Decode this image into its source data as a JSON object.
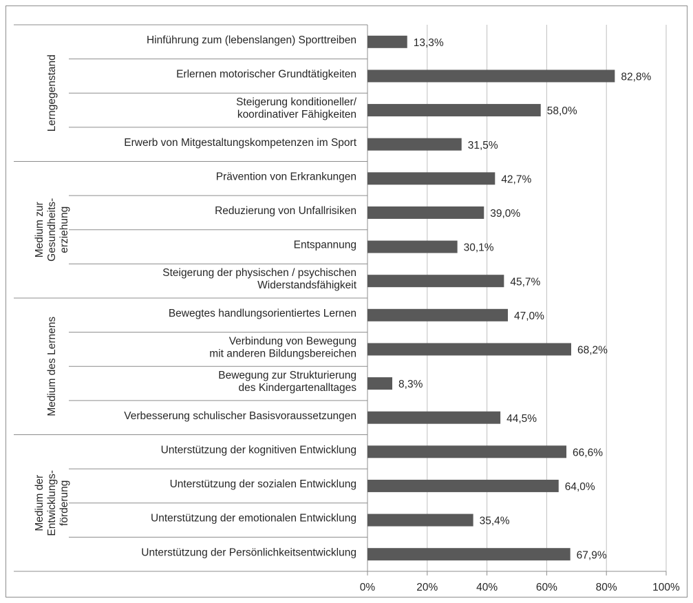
{
  "chart_data": {
    "type": "bar",
    "orientation": "horizontal",
    "color": "#595959",
    "grid": true,
    "xlim": [
      0,
      100
    ],
    "xticks": [
      {
        "value": 0,
        "label": "0%"
      },
      {
        "value": 20,
        "label": "20%"
      },
      {
        "value": 40,
        "label": "40%"
      },
      {
        "value": 60,
        "label": "60%"
      },
      {
        "value": 80,
        "label": "80%"
      },
      {
        "value": 100,
        "label": "100%"
      }
    ],
    "groups": [
      {
        "name": "Lerngegenstand",
        "categories": [
          "Hinführung zum (lebenslangen) Sporttreiben",
          "Erlernen motorischer Grundtätigkeiten",
          "Steigerung konditioneller/\nkoordinativer Fähigkeiten",
          "Erwerb von Mitgestaltungskompetenzen im Sport"
        ],
        "values": [
          13.3,
          82.8,
          58.0,
          31.5
        ],
        "value_labels": [
          "13,3%",
          "82,8%",
          "58,0%",
          "31,5%"
        ]
      },
      {
        "name": "Medium zur\nGesundheits-\nerziehung",
        "categories": [
          "Prävention von Erkrankungen",
          "Reduzierung von Unfallrisiken",
          "Entspannung",
          "Steigerung der physischen / psychischen\nWiderstandsfähigkeit"
        ],
        "values": [
          42.7,
          39.0,
          30.1,
          45.7
        ],
        "value_labels": [
          "42,7%",
          "39,0%",
          "30,1%",
          "45,7%"
        ]
      },
      {
        "name": "Medium des Lernens",
        "categories": [
          "Bewegtes handlungsorientiertes Lernen",
          "Verbindung von Bewegung\nmit anderen Bildungsbereichen",
          "Bewegung zur Strukturierung\ndes Kindergartenalltages",
          "Verbesserung schulischer Basisvoraussetzungen"
        ],
        "values": [
          47.0,
          68.2,
          8.3,
          44.5
        ],
        "value_labels": [
          "47,0%",
          "68,2%",
          "8,3%",
          "44,5%"
        ]
      },
      {
        "name": "Medium der\nEntwicklungs-\nförderung",
        "categories": [
          "Unterstützung der kognitiven Entwicklung",
          "Unterstützung der sozialen Entwicklung",
          "Unterstützung der emotionalen Entwicklung",
          "Unterstützung der Persönlichkeitsentwicklung"
        ],
        "values": [
          66.6,
          64.0,
          35.4,
          67.9
        ],
        "value_labels": [
          "66,6%",
          "64,0%",
          "35,4%",
          "67,9%"
        ]
      }
    ]
  }
}
